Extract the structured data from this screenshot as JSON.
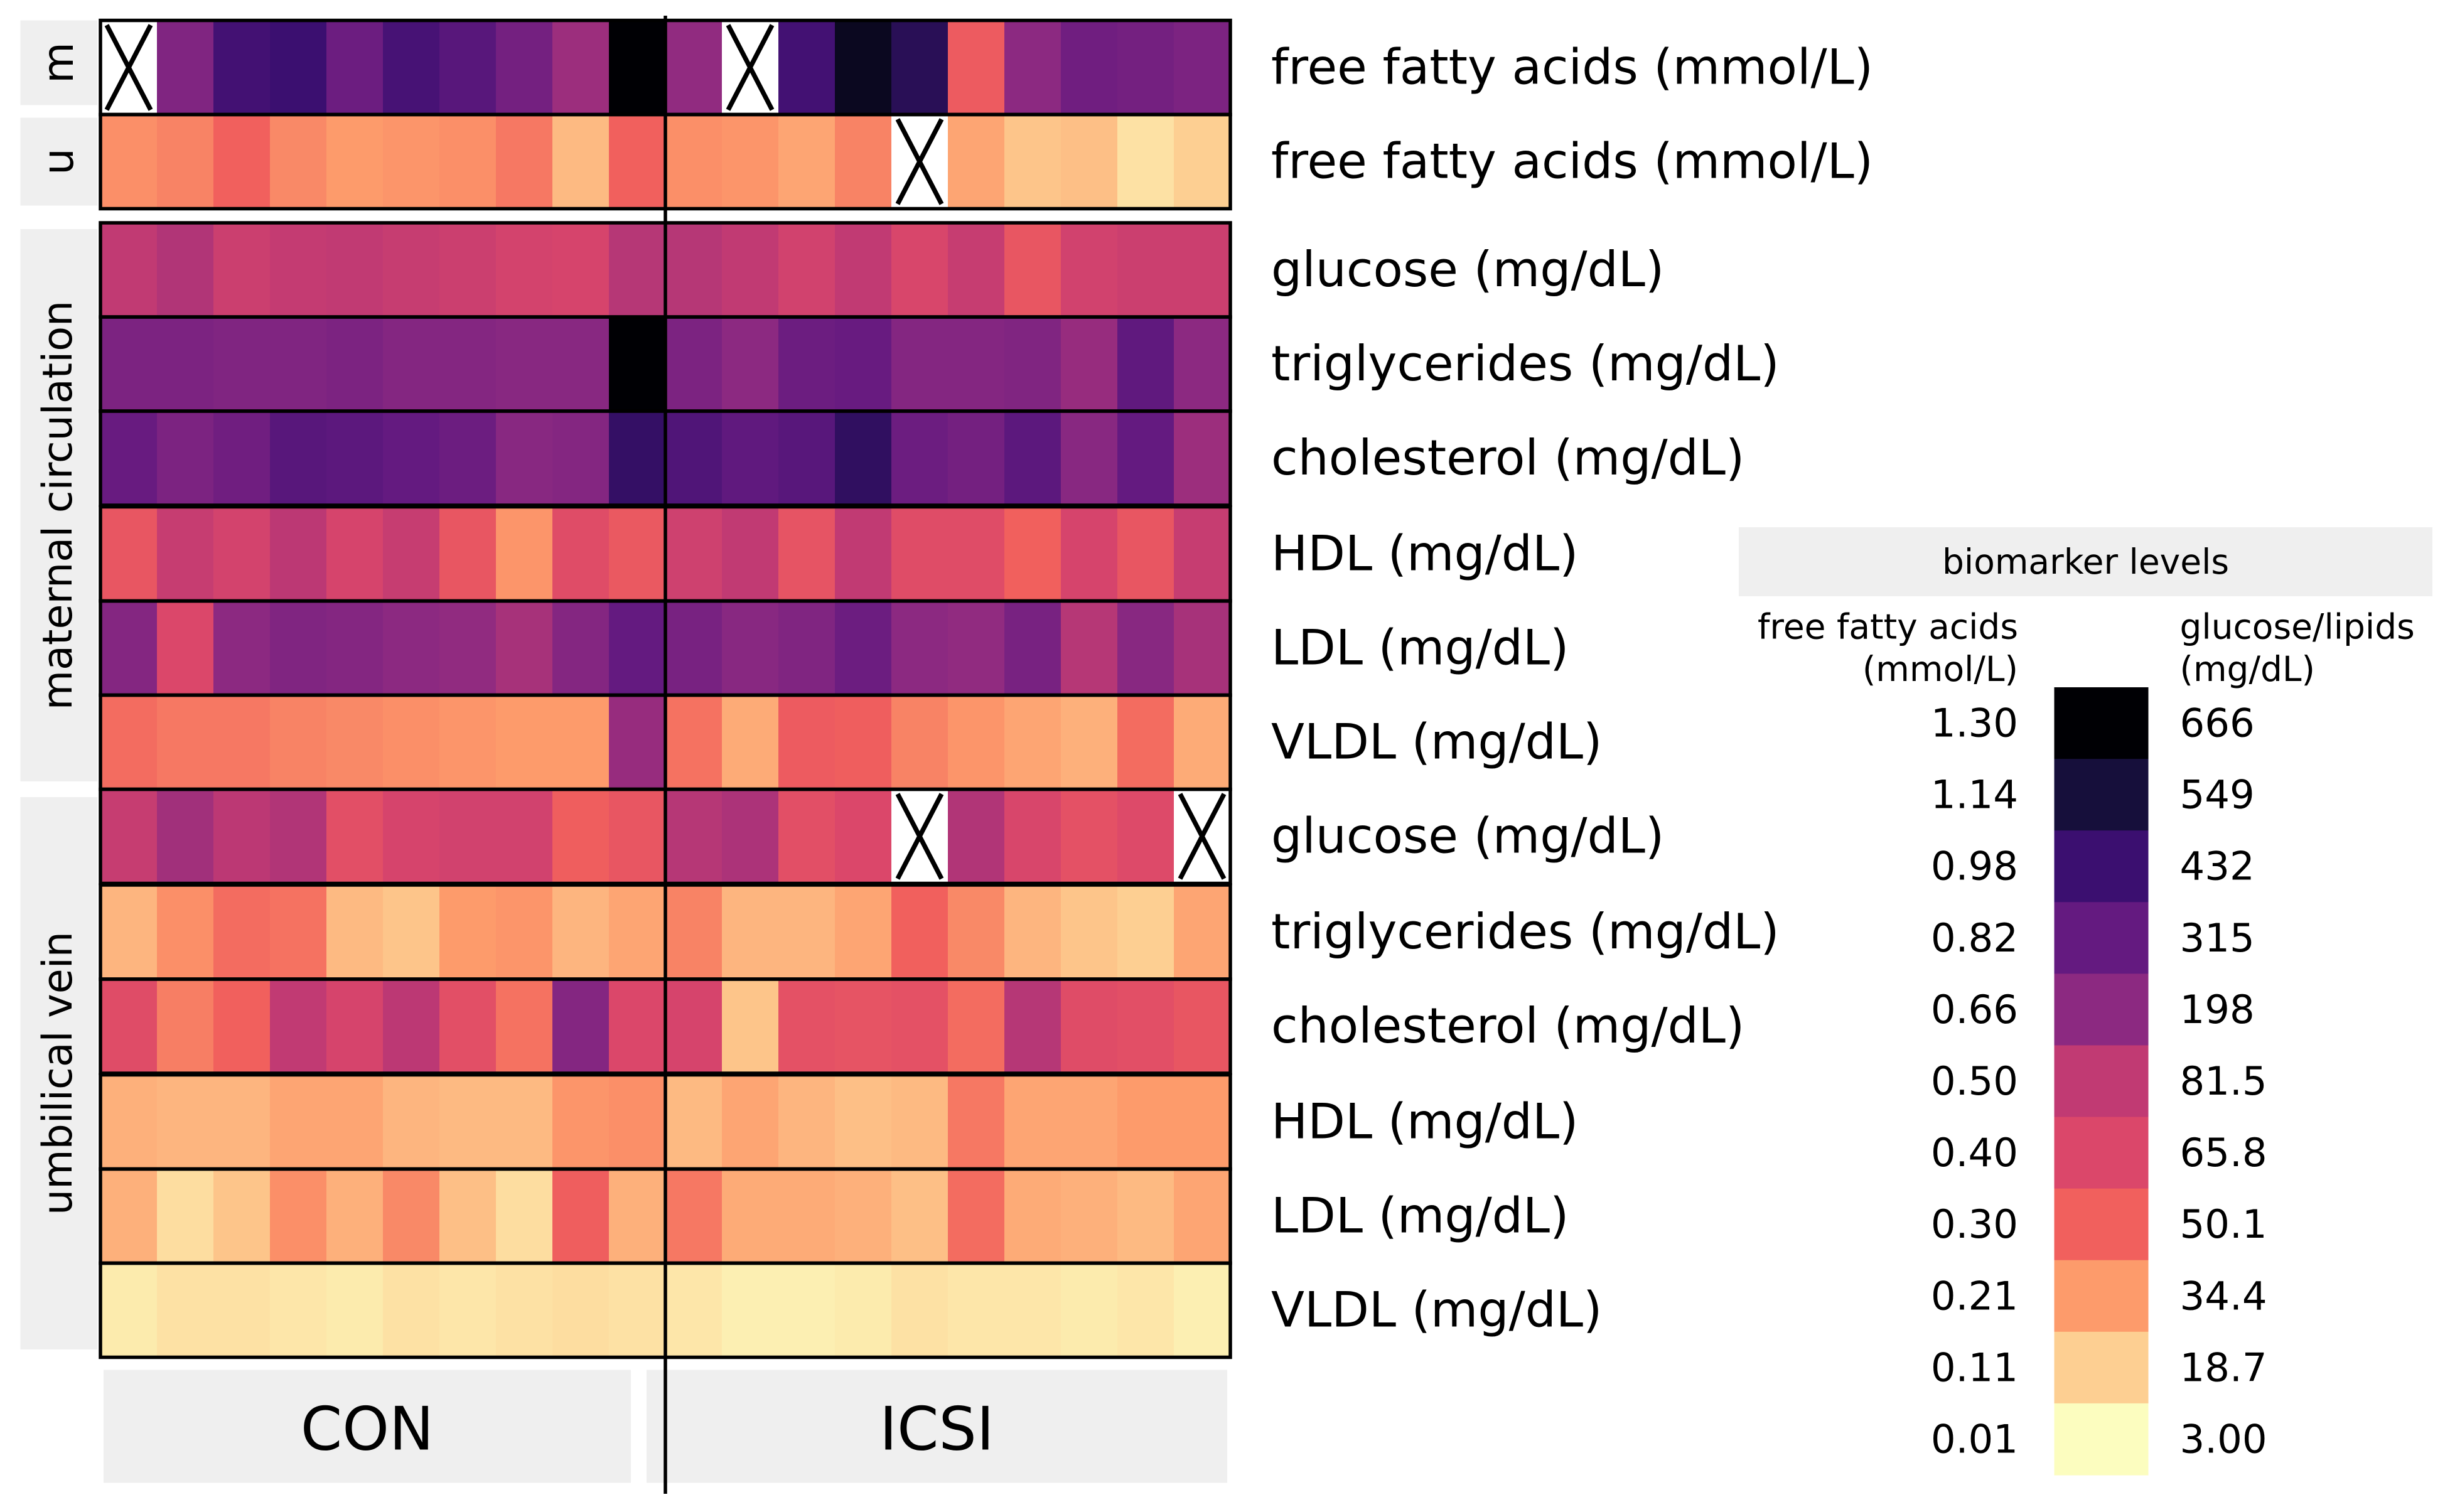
{
  "chart_data": {
    "type": "heatmap",
    "groups": [
      "CON",
      "ICSI"
    ],
    "columns_per_group": 10,
    "colorscale": [
      "#fcfdbf",
      "#fdcf92",
      "#fd9b6b",
      "#f1605d",
      "#db476a",
      "#c13a73",
      "#8c2981",
      "#641a80",
      "#3b0f70",
      "#160f3b",
      "#000004"
    ],
    "legend": {
      "title": "biomarker levels",
      "left_header": "free fatty acids\n(mmol/L)",
      "right_header": "glucose/lipids\n(mg/dL)",
      "left_values": [
        "1.30",
        "1.14",
        "0.98",
        "0.82",
        "0.66",
        "0.50",
        "0.40",
        "0.30",
        "0.21",
        "0.11",
        "0.01"
      ],
      "right_values": [
        "666",
        "549",
        "432",
        "315",
        "198",
        "81.5",
        "65.8",
        "50.1",
        "34.4",
        "18.7",
        "3.00"
      ]
    },
    "blocks": [
      {
        "label": "m",
        "rows": [
          0
        ]
      },
      {
        "label": "u",
        "rows": [
          1
        ]
      },
      {
        "label": "maternal circulation",
        "rows": [
          2,
          3,
          4,
          5,
          6,
          7
        ]
      },
      {
        "label": "umbilical vein",
        "rows": [
          8,
          9,
          10,
          11,
          12,
          13
        ]
      }
    ],
    "rows": [
      {
        "label": "free fatty acids (mmol/L)",
        "levels": [
          null,
          6.3,
          7.8,
          8.0,
          6.8,
          7.7,
          7.3,
          6.6,
          5.7,
          10,
          5.9,
          null,
          7.8,
          9.5,
          8.5,
          3.2,
          6.0,
          6.7,
          6.6,
          6.4
        ]
      },
      {
        "label": "free fatty acids (mmol/L)",
        "levels": [
          2.2,
          2.4,
          3.0,
          2.3,
          2.0,
          2.1,
          2.2,
          2.6,
          1.4,
          3.0,
          2.2,
          2.1,
          1.8,
          2.4,
          null,
          1.8,
          1.2,
          1.3,
          0.6,
          1.0
        ]
      },
      {
        "label": "glucose (mg/dL)",
        "levels": [
          5.0,
          5.3,
          4.6,
          4.9,
          5.0,
          4.8,
          4.6,
          4.3,
          4.2,
          5.2,
          5.2,
          5.0,
          4.4,
          5.0,
          4.1,
          4.8,
          3.4,
          4.4,
          4.6,
          4.6
        ]
      },
      {
        "label": "triglycerides (mg/dL)",
        "levels": [
          6.4,
          6.4,
          6.3,
          6.3,
          6.4,
          6.2,
          6.2,
          6.1,
          6.1,
          10,
          6.4,
          6.0,
          6.8,
          6.9,
          6.2,
          6.2,
          6.3,
          5.8,
          7.1,
          6.0
        ]
      },
      {
        "label": "cholesterol (mg/dL)",
        "levels": [
          6.9,
          6.4,
          6.7,
          7.3,
          7.2,
          7.0,
          6.8,
          6.1,
          6.2,
          8.2,
          7.5,
          7.1,
          7.3,
          8.3,
          6.8,
          6.6,
          7.2,
          6.1,
          7.0,
          5.7
        ]
      },
      {
        "label": "HDL (mg/dL)",
        "levels": [
          3.4,
          4.8,
          4.3,
          5.1,
          4.2,
          4.8,
          3.4,
          2.1,
          3.8,
          3.3,
          4.5,
          5.0,
          3.5,
          5.0,
          3.8,
          3.8,
          3.0,
          4.2,
          3.4,
          4.8
        ]
      },
      {
        "label": "LDL (mg/dL)",
        "levels": [
          6.2,
          4.0,
          6.0,
          6.3,
          6.2,
          6.0,
          5.9,
          5.5,
          6.2,
          7.0,
          6.5,
          6.1,
          6.3,
          6.8,
          6.0,
          5.9,
          6.5,
          5.2,
          6.1,
          5.5
        ]
      },
      {
        "label": "VLDL (mg/dL)",
        "levels": [
          2.8,
          2.6,
          2.6,
          2.4,
          2.3,
          2.2,
          2.1,
          2.0,
          2.0,
          5.8,
          2.7,
          1.7,
          3.2,
          3.1,
          2.4,
          2.1,
          1.8,
          1.6,
          2.8,
          1.7
        ]
      },
      {
        "label": "glucose (mg/dL)",
        "levels": [
          4.8,
          5.6,
          5.1,
          5.3,
          3.7,
          4.2,
          4.4,
          4.4,
          3.1,
          3.4,
          5.2,
          5.4,
          3.7,
          4.0,
          null,
          5.3,
          4.1,
          3.6,
          3.9,
          null
        ]
      },
      {
        "label": "triglycerides (mg/dL)",
        "levels": [
          1.5,
          2.2,
          2.8,
          2.7,
          1.4,
          1.2,
          2.0,
          2.1,
          1.5,
          1.8,
          2.4,
          1.5,
          1.5,
          1.8,
          3.0,
          2.3,
          1.5,
          1.2,
          1.0,
          1.8
        ]
      },
      {
        "label": "cholesterol (mg/dL)",
        "levels": [
          3.8,
          2.5,
          3.0,
          5.0,
          4.2,
          5.1,
          3.7,
          2.7,
          6.2,
          4.0,
          4.2,
          1.2,
          3.6,
          3.5,
          3.6,
          2.8,
          5.2,
          3.8,
          3.7,
          3.4
        ]
      },
      {
        "label": "HDL (mg/dL)",
        "levels": [
          1.6,
          1.5,
          1.5,
          1.8,
          1.8,
          1.5,
          1.4,
          1.4,
          2.1,
          2.2,
          1.4,
          1.8,
          1.5,
          1.3,
          1.4,
          2.6,
          1.8,
          1.8,
          2.0,
          2.0
        ]
      },
      {
        "label": "LDL (mg/dL)",
        "levels": [
          1.6,
          0.7,
          1.2,
          2.2,
          1.6,
          2.3,
          1.3,
          0.7,
          3.1,
          1.6,
          2.6,
          1.7,
          1.7,
          1.6,
          1.3,
          2.8,
          1.7,
          1.6,
          1.4,
          1.8
        ]
      },
      {
        "label": "VLDL (mg/dL)",
        "levels": [
          0.4,
          0.6,
          0.6,
          0.5,
          0.4,
          0.6,
          0.5,
          0.6,
          0.7,
          0.6,
          0.5,
          0.3,
          0.3,
          0.4,
          0.6,
          0.5,
          0.5,
          0.4,
          0.5,
          0.3
        ]
      }
    ]
  }
}
